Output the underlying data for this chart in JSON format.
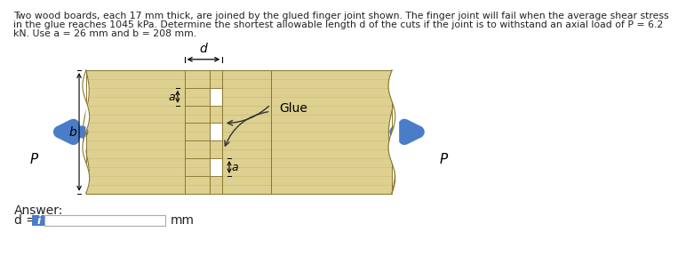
{
  "title_line1": "Two wood boards, each 17 mm thick, are joined by the glued finger joint shown. The finger joint will fail when the average shear stress",
  "title_line2": "in the glue reaches 1045 kPa. Determine the shortest allowable length d of the cuts if the joint is to withstand an axial load of P = 6.2",
  "title_line3": "kN. Use a = 26 mm and b = 208 mm.",
  "background_color": "#ffffff",
  "wood_color": "#ddd090",
  "wood_light": "#e8dc9c",
  "wood_dark": "#c8b870",
  "grain_color": "#ccc078",
  "answer_label": "Answer:",
  "d_label": "d =",
  "mm_label": "mm",
  "glue_label": "Glue",
  "arrow_color": "#4a7cc7",
  "P_label": "P",
  "a_label": "a",
  "b_label": "b",
  "d_annot": "d",
  "input_box_color": "#4a7cc7",
  "input_box_text": "i",
  "text_color": "#222222"
}
